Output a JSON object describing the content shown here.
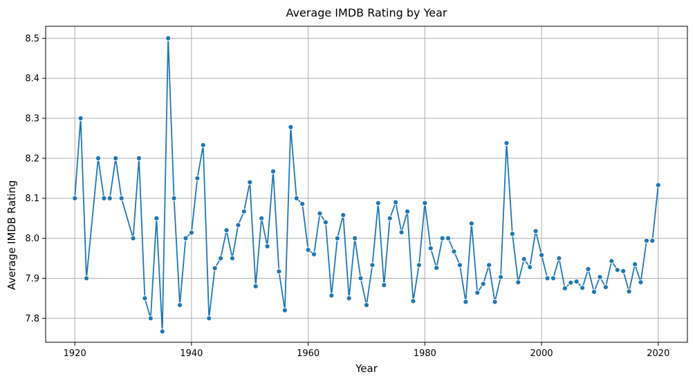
{
  "chart_data": {
    "type": "line",
    "title": "Average IMDB Rating by Year",
    "xlabel": "Year",
    "ylabel": "Average IMDB Rating",
    "xlim": [
      1915,
      2025
    ],
    "ylim": [
      7.74,
      8.53
    ],
    "xticks": [
      1920,
      1940,
      1960,
      1980,
      2000,
      2020
    ],
    "xtick_labels": [
      "1920",
      "1940",
      "1960",
      "1980",
      "2000",
      "2020"
    ],
    "yticks": [
      7.8,
      7.9,
      8.0,
      8.1,
      8.2,
      8.3,
      8.4,
      8.5
    ],
    "ytick_labels": [
      "7.8",
      "7.9",
      "8.0",
      "8.1",
      "8.2",
      "8.3",
      "8.4",
      "8.5"
    ],
    "grid": true,
    "colors": {
      "line": "#1f77b4",
      "grid": "#b0b0b0"
    },
    "x": [
      1920,
      1921,
      1922,
      1924,
      1925,
      1926,
      1927,
      1928,
      1930,
      1931,
      1932,
      1933,
      1934,
      1935,
      1936,
      1937,
      1938,
      1939,
      1940,
      1941,
      1942,
      1943,
      1944,
      1945,
      1946,
      1947,
      1948,
      1949,
      1950,
      1951,
      1952,
      1953,
      1954,
      1955,
      1956,
      1957,
      1958,
      1959,
      1960,
      1961,
      1962,
      1963,
      1964,
      1965,
      1966,
      1967,
      1968,
      1969,
      1970,
      1971,
      1972,
      1973,
      1974,
      1975,
      1976,
      1977,
      1978,
      1979,
      1980,
      1981,
      1982,
      1983,
      1984,
      1985,
      1986,
      1987,
      1988,
      1989,
      1990,
      1991,
      1992,
      1993,
      1994,
      1995,
      1996,
      1997,
      1998,
      1999,
      2000,
      2001,
      2002,
      2003,
      2004,
      2005,
      2006,
      2007,
      2008,
      2009,
      2010,
      2011,
      2012,
      2013,
      2014,
      2015,
      2016,
      2017,
      2018,
      2019,
      2020
    ],
    "series": [
      {
        "values": [
          8.1,
          8.3,
          7.9,
          8.2,
          8.1,
          8.1,
          8.2,
          8.1,
          8.0,
          8.2,
          7.85,
          7.8,
          8.05,
          7.767,
          8.5,
          8.1,
          7.833,
          8.0,
          8.014,
          8.15,
          8.233,
          7.8,
          7.925,
          7.95,
          8.02,
          7.95,
          8.033,
          8.067,
          8.14,
          7.88,
          8.05,
          7.98,
          8.167,
          7.917,
          7.82,
          8.278,
          8.1,
          8.086,
          7.971,
          7.96,
          8.062,
          8.04,
          7.857,
          8.0,
          8.058,
          7.85,
          8.0,
          7.9,
          7.833,
          7.933,
          8.088,
          7.883,
          8.05,
          8.09,
          8.015,
          8.067,
          7.843,
          7.933,
          8.088,
          7.975,
          7.926,
          8.0,
          8.0,
          7.967,
          7.933,
          7.841,
          8.037,
          7.864,
          7.886,
          7.933,
          7.841,
          7.903,
          8.238,
          8.011,
          7.89,
          7.948,
          7.928,
          8.018,
          7.958,
          7.9,
          7.9,
          7.95,
          7.875,
          7.889,
          7.892,
          7.876,
          7.923,
          7.866,
          7.903,
          7.878,
          7.943,
          7.921,
          7.918,
          7.867,
          7.935,
          7.89,
          7.994,
          7.994,
          8.133
        ]
      }
    ]
  }
}
